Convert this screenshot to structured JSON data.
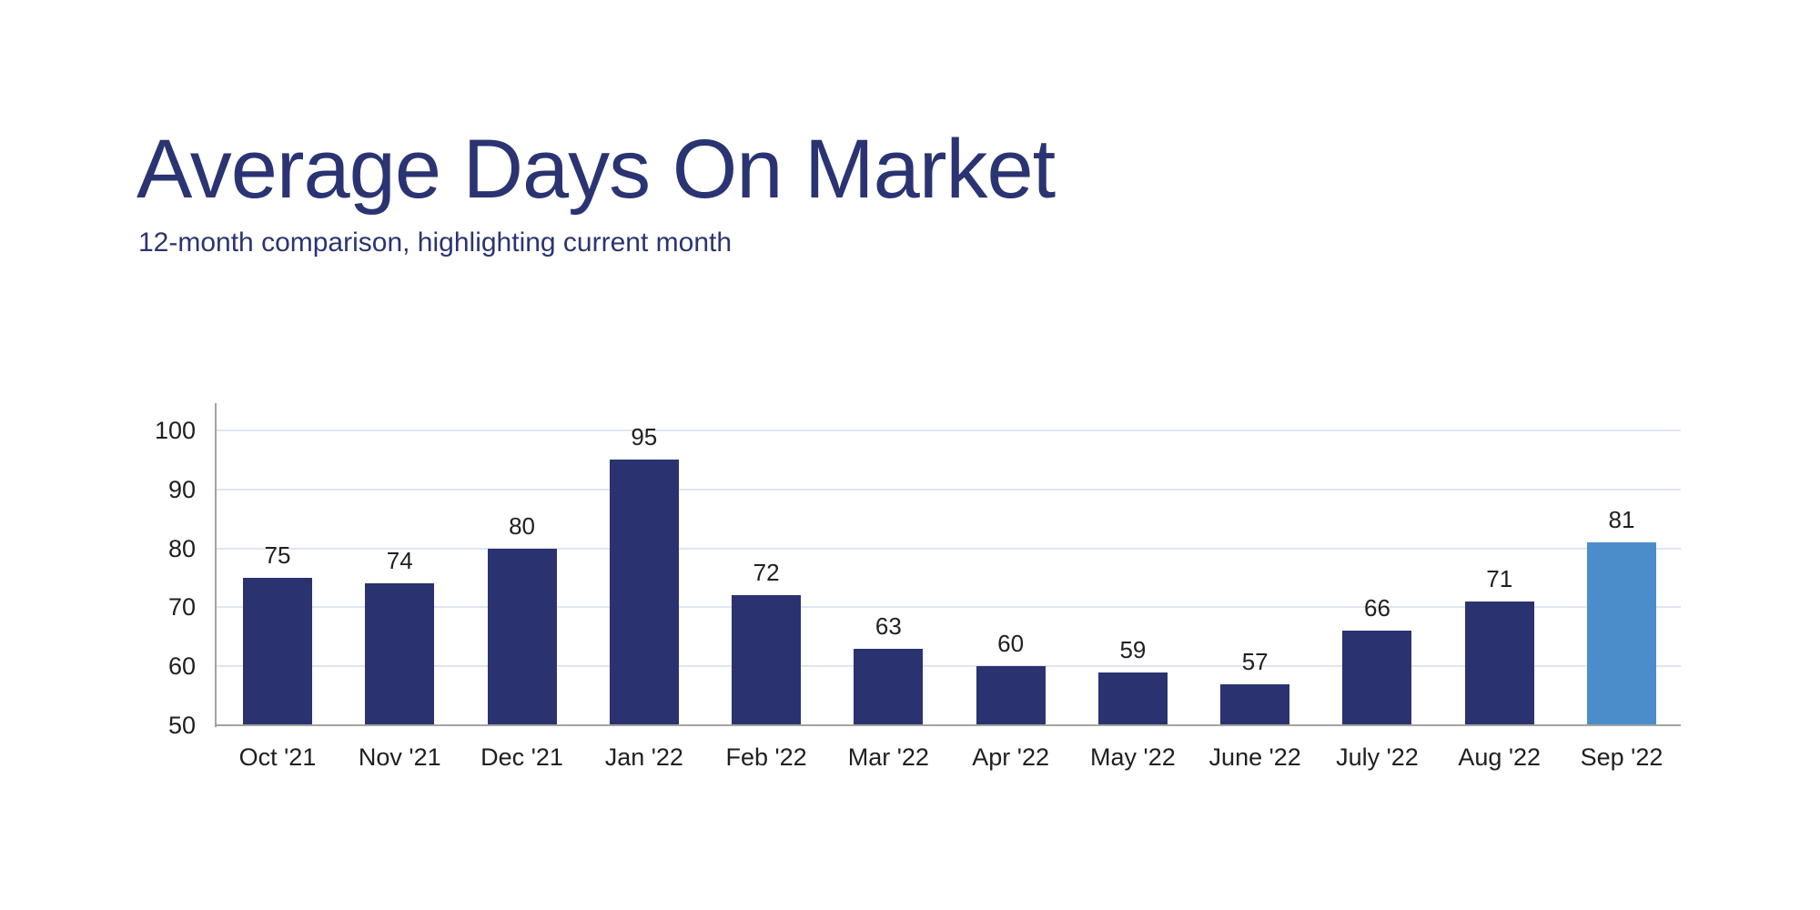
{
  "header": {
    "title": "Average Days On Market",
    "subtitle": "12-month comparison, highlighting current month"
  },
  "chart_data": {
    "type": "bar",
    "title": "Average Days On Market",
    "subtitle": "12-month comparison, highlighting current month",
    "categories": [
      "Oct '21",
      "Nov '21",
      "Dec '21",
      "Jan '22",
      "Feb '22",
      "Mar '22",
      "Apr '22",
      "May '22",
      "June '22",
      "July '22",
      "Aug '22",
      "Sep '22"
    ],
    "values": [
      75,
      74,
      80,
      95,
      72,
      63,
      60,
      59,
      57,
      66,
      71,
      81
    ],
    "highlight_index": 11,
    "highlight_category": "Sep '22",
    "data_labels": true,
    "xlabel": "",
    "ylabel": "",
    "ylim": [
      50,
      100
    ],
    "yticks": [
      50,
      60,
      70,
      80,
      90,
      100
    ],
    "grid": true,
    "legend": "none",
    "colors": {
      "bar": "#2a336f",
      "bar_highlight": "#4b8dca",
      "gridline": "#dde6f1",
      "axis": "#a3a3a3",
      "label_text": "#1f1f1f",
      "title_text": "#2b3472"
    }
  }
}
